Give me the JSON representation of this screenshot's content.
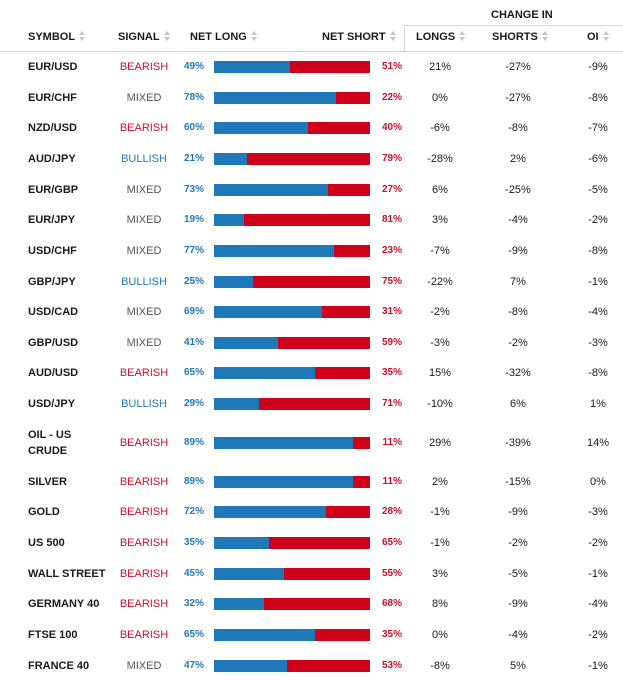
{
  "header": {
    "symbol": "SYMBOL",
    "signal": "SIGNAL",
    "net_long": "NET LONG",
    "net_short": "NET SHORT",
    "change_in": "CHANGE IN",
    "longs": "LONGS",
    "shorts": "SHORTS",
    "oi": "OI"
  },
  "colors": {
    "long": "#1f79b9",
    "short": "#d0021b",
    "bearish": "#c8102e",
    "bullish": "#1f79b9",
    "mixed": "#555555"
  },
  "rows": [
    {
      "symbol": "EUR/USD",
      "signal": "BEARISH",
      "net_long": "49%",
      "net_short": "51%",
      "long_pct": 49,
      "longs": "21%",
      "shorts": "-27%",
      "oi": "-9%"
    },
    {
      "symbol": "EUR/CHF",
      "signal": "MIXED",
      "net_long": "78%",
      "net_short": "22%",
      "long_pct": 78,
      "longs": "0%",
      "shorts": "-27%",
      "oi": "-8%"
    },
    {
      "symbol": "NZD/USD",
      "signal": "BEARISH",
      "net_long": "60%",
      "net_short": "40%",
      "long_pct": 60,
      "longs": "-6%",
      "shorts": "-8%",
      "oi": "-7%"
    },
    {
      "symbol": "AUD/JPY",
      "signal": "BULLISH",
      "net_long": "21%",
      "net_short": "79%",
      "long_pct": 21,
      "longs": "-28%",
      "shorts": "2%",
      "oi": "-6%"
    },
    {
      "symbol": "EUR/GBP",
      "signal": "MIXED",
      "net_long": "73%",
      "net_short": "27%",
      "long_pct": 73,
      "longs": "6%",
      "shorts": "-25%",
      "oi": "-5%"
    },
    {
      "symbol": "EUR/JPY",
      "signal": "MIXED",
      "net_long": "19%",
      "net_short": "81%",
      "long_pct": 19,
      "longs": "3%",
      "shorts": "-4%",
      "oi": "-2%"
    },
    {
      "symbol": "USD/CHF",
      "signal": "MIXED",
      "net_long": "77%",
      "net_short": "23%",
      "long_pct": 77,
      "longs": "-7%",
      "shorts": "-9%",
      "oi": "-8%"
    },
    {
      "symbol": "GBP/JPY",
      "signal": "BULLISH",
      "net_long": "25%",
      "net_short": "75%",
      "long_pct": 25,
      "longs": "-22%",
      "shorts": "7%",
      "oi": "-1%"
    },
    {
      "symbol": "USD/CAD",
      "signal": "MIXED",
      "net_long": "69%",
      "net_short": "31%",
      "long_pct": 69,
      "longs": "-2%",
      "shorts": "-8%",
      "oi": "-4%"
    },
    {
      "symbol": "GBP/USD",
      "signal": "MIXED",
      "net_long": "41%",
      "net_short": "59%",
      "long_pct": 41,
      "longs": "-3%",
      "shorts": "-2%",
      "oi": "-3%"
    },
    {
      "symbol": "AUD/USD",
      "signal": "BEARISH",
      "net_long": "65%",
      "net_short": "35%",
      "long_pct": 65,
      "longs": "15%",
      "shorts": "-32%",
      "oi": "-8%"
    },
    {
      "symbol": "USD/JPY",
      "signal": "BULLISH",
      "net_long": "29%",
      "net_short": "71%",
      "long_pct": 29,
      "longs": "-10%",
      "shorts": "6%",
      "oi": "1%"
    },
    {
      "symbol": "OIL - US CRUDE",
      "symbol_line1": "OIL - US",
      "symbol_line2": "CRUDE",
      "signal": "BEARISH",
      "net_long": "89%",
      "net_short": "11%",
      "long_pct": 89,
      "longs": "29%",
      "shorts": "-39%",
      "oi": "14%"
    },
    {
      "symbol": "SILVER",
      "signal": "BEARISH",
      "net_long": "89%",
      "net_short": "11%",
      "long_pct": 89,
      "longs": "2%",
      "shorts": "-15%",
      "oi": "0%"
    },
    {
      "symbol": "GOLD",
      "signal": "BEARISH",
      "net_long": "72%",
      "net_short": "28%",
      "long_pct": 72,
      "longs": "-1%",
      "shorts": "-9%",
      "oi": "-3%"
    },
    {
      "symbol": "US 500",
      "signal": "BEARISH",
      "net_long": "35%",
      "net_short": "65%",
      "long_pct": 35,
      "longs": "-1%",
      "shorts": "-2%",
      "oi": "-2%"
    },
    {
      "symbol": "WALL STREET",
      "signal": "BEARISH",
      "net_long": "45%",
      "net_short": "55%",
      "long_pct": 45,
      "longs": "3%",
      "shorts": "-5%",
      "oi": "-1%"
    },
    {
      "symbol": "GERMANY 40",
      "signal": "BEARISH",
      "net_long": "32%",
      "net_short": "68%",
      "long_pct": 32,
      "longs": "8%",
      "shorts": "-9%",
      "oi": "-4%"
    },
    {
      "symbol": "FTSE 100",
      "signal": "BEARISH",
      "net_long": "65%",
      "net_short": "35%",
      "long_pct": 65,
      "longs": "0%",
      "shorts": "-4%",
      "oi": "-2%"
    },
    {
      "symbol": "FRANCE 40",
      "signal": "MIXED",
      "net_long": "47%",
      "net_short": "53%",
      "long_pct": 47,
      "longs": "-8%",
      "shorts": "5%",
      "oi": "-1%"
    }
  ]
}
